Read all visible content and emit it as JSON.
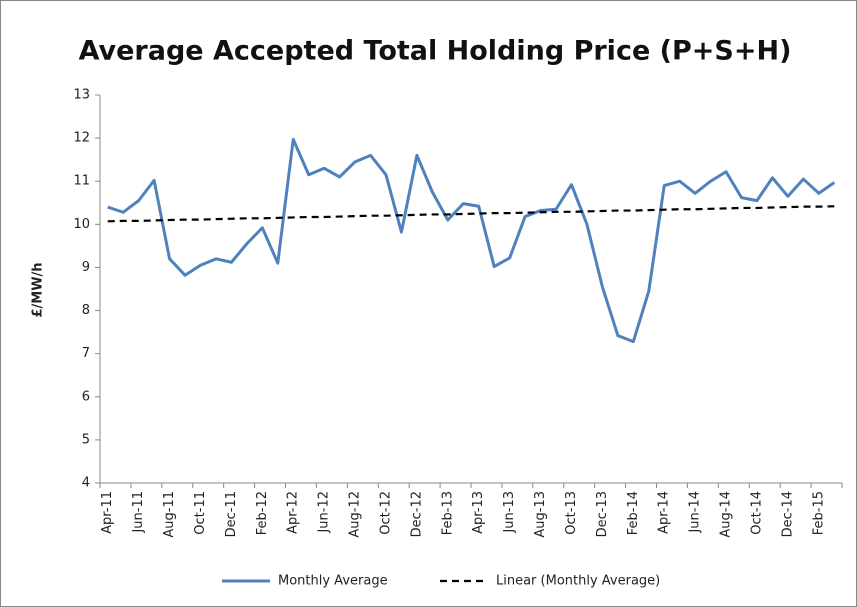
{
  "chart_data": {
    "type": "line",
    "title": "Average Accepted Total Holding Price (P+S+H)",
    "y_label": "£/MW/h",
    "categories": [
      "Apr-11",
      null,
      "Jun-11",
      null,
      "Aug-11",
      null,
      "Oct-11",
      null,
      "Dec-11",
      null,
      "Feb-12",
      null,
      "Apr-12",
      null,
      "Jun-12",
      null,
      "Aug-12",
      null,
      "Oct-12",
      null,
      "Dec-12",
      null,
      "Feb-13",
      null,
      "Apr-13",
      null,
      "Jun-13",
      null,
      "Aug-13",
      null,
      "Oct-13",
      null,
      "Dec-13",
      null,
      "Feb-14",
      null,
      "Apr-14",
      null,
      "Jun-14",
      null,
      "Aug-14",
      null,
      "Oct-14",
      null,
      "Dec-14",
      null,
      "Feb-15",
      null
    ],
    "series": [
      {
        "name": "Monthly Average",
        "color": "#4f81bd",
        "dashed": false,
        "values": [
          10.4,
          10.28,
          10.55,
          11.02,
          9.2,
          8.82,
          9.05,
          9.2,
          9.12,
          9.55,
          9.92,
          9.1,
          11.97,
          11.15,
          11.3,
          11.1,
          11.45,
          11.6,
          11.15,
          9.82,
          11.6,
          10.75,
          10.1,
          10.48,
          10.42,
          9.02,
          9.22,
          10.18,
          10.32,
          10.35,
          10.92,
          10.0,
          8.55,
          7.42,
          7.28,
          8.45,
          10.9,
          11.0,
          10.72,
          11.0,
          11.22,
          10.62,
          10.55,
          11.08,
          10.65,
          11.05,
          10.72,
          10.97
        ]
      },
      {
        "name": "Linear (Monthly Average)",
        "color": "#000000",
        "dashed": true,
        "values": [
          10.07,
          10.08,
          10.08,
          10.09,
          10.1,
          10.11,
          10.11,
          10.12,
          10.13,
          10.14,
          10.14,
          10.15,
          10.16,
          10.17,
          10.17,
          10.18,
          10.19,
          10.2,
          10.2,
          10.21,
          10.22,
          10.23,
          10.23,
          10.24,
          10.25,
          10.26,
          10.26,
          10.27,
          10.28,
          10.29,
          10.29,
          10.3,
          10.31,
          10.32,
          10.32,
          10.33,
          10.34,
          10.35,
          10.35,
          10.36,
          10.37,
          10.38,
          10.38,
          10.39,
          10.4,
          10.41,
          10.41,
          10.42
        ]
      }
    ],
    "ylim": [
      4,
      13
    ],
    "yticks": [
      4,
      5,
      6,
      7,
      8,
      9,
      10,
      11,
      12,
      13
    ],
    "grid": false,
    "legend": "bottom"
  }
}
